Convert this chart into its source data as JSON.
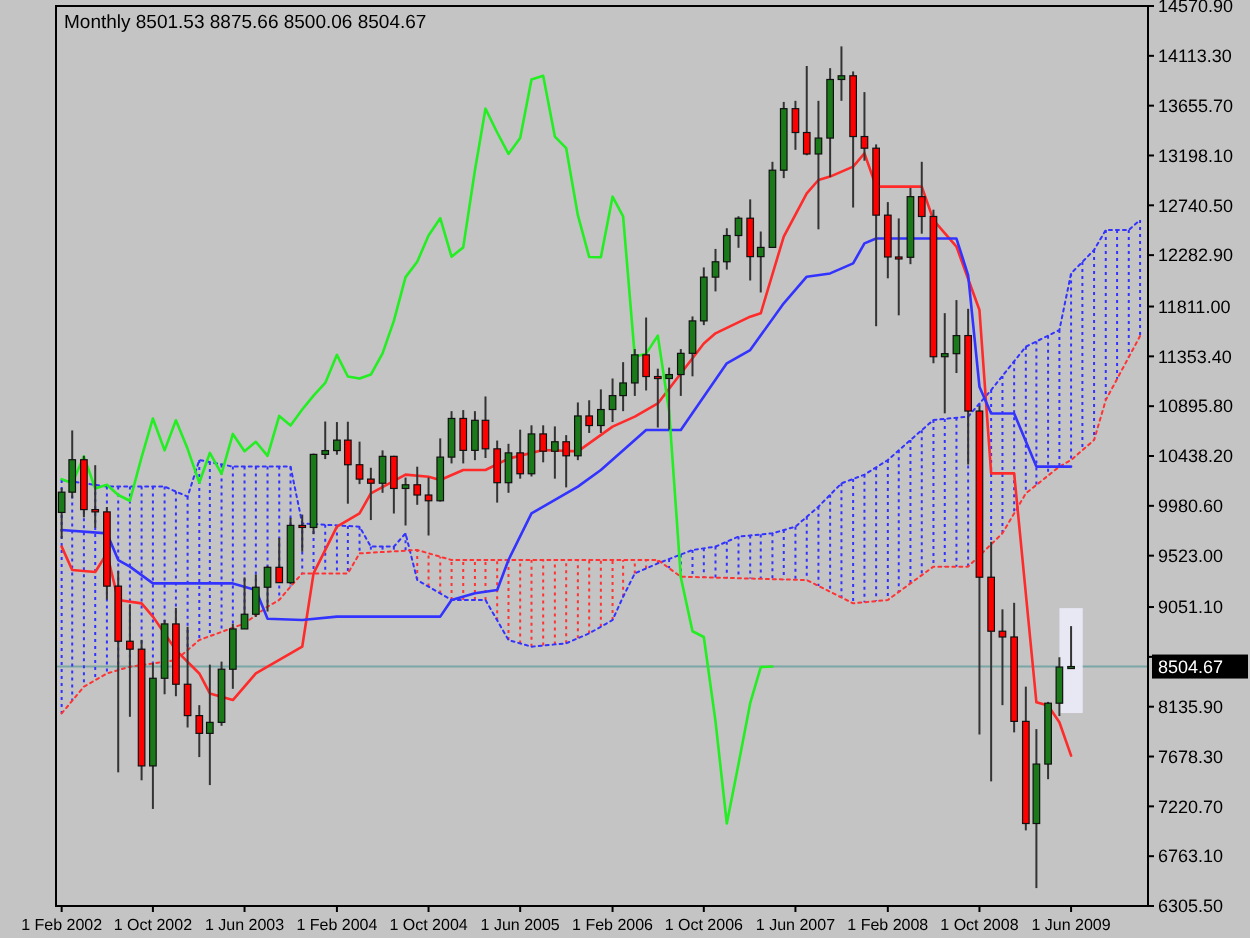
{
  "chart_data": {
    "type": "candlestick",
    "title": "Monthly 8501.53 8875.66 8500.06 8504.67",
    "x": [
      "2002-02",
      "2002-03",
      "2002-04",
      "2002-05",
      "2002-06",
      "2002-07",
      "2002-08",
      "2002-09",
      "2002-10",
      "2002-11",
      "2002-12",
      "2003-01",
      "2003-02",
      "2003-03",
      "2003-04",
      "2003-05",
      "2003-06",
      "2003-07",
      "2003-08",
      "2003-09",
      "2003-10",
      "2003-11",
      "2003-12",
      "2004-01",
      "2004-02",
      "2004-03",
      "2004-04",
      "2004-05",
      "2004-06",
      "2004-07",
      "2004-08",
      "2004-09",
      "2004-10",
      "2004-11",
      "2004-12",
      "2005-01",
      "2005-02",
      "2005-03",
      "2005-04",
      "2005-05",
      "2005-06",
      "2005-07",
      "2005-08",
      "2005-09",
      "2005-10",
      "2005-11",
      "2005-12",
      "2006-01",
      "2006-02",
      "2006-03",
      "2006-04",
      "2006-05",
      "2006-06",
      "2006-07",
      "2006-08",
      "2006-09",
      "2006-10",
      "2006-11",
      "2006-12",
      "2007-01",
      "2007-02",
      "2007-03",
      "2007-04",
      "2007-05",
      "2007-06",
      "2007-07",
      "2007-08",
      "2007-09",
      "2007-10",
      "2007-11",
      "2007-12",
      "2008-01",
      "2008-02",
      "2008-03",
      "2008-04",
      "2008-05",
      "2008-06",
      "2008-07",
      "2008-08",
      "2008-09",
      "2008-10",
      "2008-11",
      "2008-12",
      "2009-01",
      "2009-02",
      "2009-03",
      "2009-04",
      "2009-05",
      "2009-06"
    ],
    "ohlc": [
      [
        9920,
        10145,
        9680,
        10106
      ],
      [
        10106,
        10673,
        10050,
        10404
      ],
      [
        10404,
        10440,
        9875,
        9946
      ],
      [
        9946,
        10354,
        9780,
        9925
      ],
      [
        9925,
        9970,
        9120,
        9243
      ],
      [
        9243,
        9380,
        7533,
        8737
      ],
      [
        8737,
        9077,
        8043,
        8664
      ],
      [
        8664,
        8750,
        7460,
        7592
      ],
      [
        7592,
        8538,
        7197,
        8397
      ],
      [
        8397,
        8932,
        8250,
        8896
      ],
      [
        8896,
        9043,
        8232,
        8342
      ],
      [
        8342,
        8870,
        7945,
        8054
      ],
      [
        8054,
        8150,
        7673,
        7891
      ],
      [
        7891,
        8522,
        7416,
        7992
      ],
      [
        7992,
        8550,
        7960,
        8480
      ],
      [
        8480,
        8897,
        8300,
        8850
      ],
      [
        8850,
        9323,
        8850,
        8985
      ],
      [
        8985,
        9350,
        8960,
        9233
      ],
      [
        9233,
        9430,
        9010,
        9416
      ],
      [
        9416,
        9686,
        9275,
        9275
      ],
      [
        9275,
        9870,
        9260,
        9801
      ],
      [
        9801,
        9900,
        9560,
        9782
      ],
      [
        9782,
        10460,
        9720,
        10453
      ],
      [
        10453,
        10755,
        10410,
        10488
      ],
      [
        10488,
        10750,
        10450,
        10584
      ],
      [
        10584,
        10753,
        10000,
        10358
      ],
      [
        10358,
        10570,
        10180,
        10226
      ],
      [
        10226,
        10330,
        9850,
        10188
      ],
      [
        10188,
        10490,
        10100,
        10435
      ],
      [
        10435,
        10440,
        9910,
        10140
      ],
      [
        10140,
        10240,
        9800,
        10174
      ],
      [
        10174,
        10340,
        9990,
        10080
      ],
      [
        10080,
        10240,
        9708,
        10027
      ],
      [
        10027,
        10600,
        10020,
        10428
      ],
      [
        10428,
        10850,
        10370,
        10783
      ],
      [
        10783,
        10860,
        10370,
        10490
      ],
      [
        10490,
        10850,
        10400,
        10766
      ],
      [
        10766,
        10985,
        10420,
        10504
      ],
      [
        10504,
        10580,
        10010,
        10193
      ],
      [
        10193,
        10550,
        10100,
        10467
      ],
      [
        10467,
        10680,
        10230,
        10275
      ],
      [
        10275,
        10720,
        10250,
        10641
      ],
      [
        10641,
        10720,
        10380,
        10482
      ],
      [
        10482,
        10710,
        10230,
        10569
      ],
      [
        10569,
        10630,
        10150,
        10440
      ],
      [
        10440,
        10930,
        10400,
        10806
      ],
      [
        10806,
        10950,
        10650,
        10718
      ],
      [
        10718,
        11050,
        10650,
        10865
      ],
      [
        10865,
        11150,
        10750,
        10993
      ],
      [
        10993,
        11300,
        10850,
        11109
      ],
      [
        11109,
        11420,
        10990,
        11367
      ],
      [
        11367,
        11710,
        11040,
        11168
      ],
      [
        11168,
        11240,
        10700,
        11150
      ],
      [
        11150,
        11250,
        10680,
        11186
      ],
      [
        11186,
        11420,
        10990,
        11381
      ],
      [
        11381,
        11720,
        11170,
        11679
      ],
      [
        11679,
        12170,
        11640,
        12081
      ],
      [
        12081,
        12340,
        11950,
        12222
      ],
      [
        12222,
        12530,
        12150,
        12463
      ],
      [
        12463,
        12640,
        12350,
        12622
      ],
      [
        12622,
        12795,
        12050,
        12269
      ],
      [
        12269,
        12500,
        11940,
        12354
      ],
      [
        12354,
        13140,
        12350,
        13063
      ],
      [
        13063,
        13690,
        12990,
        13628
      ],
      [
        13628,
        13700,
        13250,
        13409
      ],
      [
        13409,
        14020,
        13200,
        13212
      ],
      [
        13212,
        13700,
        12520,
        13358
      ],
      [
        13358,
        14000,
        13000,
        13896
      ],
      [
        13896,
        14200,
        13700,
        13930
      ],
      [
        13930,
        13970,
        12720,
        13372
      ],
      [
        13372,
        13780,
        13150,
        13265
      ],
      [
        13265,
        13300,
        11630,
        12650
      ],
      [
        12650,
        12770,
        12070,
        12266
      ],
      [
        12266,
        12620,
        11730,
        12263
      ],
      [
        12263,
        12900,
        12200,
        12820
      ],
      [
        12820,
        13140,
        12480,
        12638
      ],
      [
        12638,
        12700,
        11290,
        11350
      ],
      [
        11350,
        11750,
        10830,
        11378
      ],
      [
        11378,
        11870,
        11200,
        11544
      ],
      [
        11544,
        11790,
        10360,
        10851
      ],
      [
        10851,
        10900,
        7880,
        9325
      ],
      [
        9325,
        9650,
        7450,
        8829
      ],
      [
        8829,
        9030,
        8150,
        8776
      ],
      [
        8776,
        9090,
        7900,
        8001
      ],
      [
        8001,
        8320,
        7000,
        7063
      ],
      [
        7063,
        7930,
        6470,
        7609
      ],
      [
        7609,
        8180,
        7470,
        8168
      ],
      [
        8168,
        8590,
        8050,
        8500
      ],
      [
        8501.53,
        8875.66,
        8500.06,
        8504.67
      ]
    ],
    "colors": [
      "#1a7a1a",
      "#1a7a1a",
      "#ff0000",
      "#ff0000",
      "#ff0000",
      "#ff0000",
      "#ff0000",
      "#ff0000",
      "#1a7a1a",
      "#1a7a1a",
      "#ff0000",
      "#ff0000",
      "#ff0000",
      "#1a7a1a",
      "#1a7a1a",
      "#1a7a1a",
      "#1a7a1a",
      "#1a7a1a",
      "#1a7a1a",
      "#ff0000",
      "#1a7a1a",
      "#ff0000",
      "#1a7a1a",
      "#1a7a1a",
      "#1a7a1a",
      "#ff0000",
      "#ff0000",
      "#ff0000",
      "#1a7a1a",
      "#ff0000",
      "#1a7a1a",
      "#ff0000",
      "#ff0000",
      "#1a7a1a",
      "#1a7a1a",
      "#ff0000",
      "#1a7a1a",
      "#ff0000",
      "#ff0000",
      "#1a7a1a",
      "#ff0000",
      "#1a7a1a",
      "#ff0000",
      "#1a7a1a",
      "#ff0000",
      "#1a7a1a",
      "#ff0000",
      "#1a7a1a",
      "#1a7a1a",
      "#1a7a1a",
      "#1a7a1a",
      "#ff0000",
      "#ff0000",
      "#1a7a1a",
      "#1a7a1a",
      "#1a7a1a",
      "#1a7a1a",
      "#1a7a1a",
      "#1a7a1a",
      "#1a7a1a",
      "#ff0000",
      "#1a7a1a",
      "#1a7a1a",
      "#1a7a1a",
      "#ff0000",
      "#ff0000",
      "#1a7a1a",
      "#1a7a1a",
      "#1a7a1a",
      "#ff0000",
      "#ff0000",
      "#ff0000",
      "#ff0000",
      "#ff0000",
      "#1a7a1a",
      "#ff0000",
      "#ff0000",
      "#1a7a1a",
      "#1a7a1a",
      "#ff0000",
      "#ff0000",
      "#ff0000",
      "#ff0000",
      "#ff0000",
      "#ff0000",
      "#1a7a1a",
      "#1a7a1a",
      "#1a7a1a",
      "#1a7a1a"
    ],
    "series": [
      {
        "type": "line",
        "color": "#3333ff",
        "line_style": "dotted",
        "x": [
          "2002-02",
          "2002-06",
          "2002-11",
          "2003-01",
          "2003-02",
          "2003-05",
          "2003-10",
          "2003-11",
          "2004-04",
          "2004-05",
          "2004-07",
          "2004-08",
          "2004-09",
          "2004-12",
          "2005-03",
          "2005-05",
          "2005-07",
          "2005-10",
          "2005-12",
          "2006-02",
          "2006-03",
          "2006-04",
          "2006-06",
          "2006-09",
          "2006-11",
          "2007-01",
          "2007-04",
          "2007-06",
          "2007-08",
          "2007-10",
          "2007-12",
          "2008-02",
          "2008-04",
          "2008-06",
          "2008-09",
          "2008-11",
          "2009-02",
          "2009-05",
          "2009-06",
          "2009-08",
          "2009-09",
          "2009-11",
          "2009-12"
        ],
        "values": [
          10218,
          10157,
          10157,
          10065,
          10401,
          10341,
          10341,
          9819,
          9789,
          9606,
          9606,
          9728,
          9299,
          9116,
          9116,
          8748,
          8687,
          8718,
          8809,
          8932,
          9146,
          9360,
          9452,
          9575,
          9606,
          9698,
          9728,
          9789,
          9973,
          10187,
          10267,
          10401,
          10585,
          10769,
          10800,
          11044,
          11442,
          11595,
          12115,
          12330,
          12514,
          12514,
          12605
        ]
      },
      {
        "type": "line",
        "color": "#ff3333",
        "line_style": "dotted",
        "x": [
          "2002-02",
          "2002-04",
          "2002-06",
          "2002-08",
          "2002-12",
          "2003-02",
          "2003-06",
          "2003-08",
          "2003-09",
          "2003-10",
          "2003-11",
          "2004-03",
          "2004-04",
          "2004-09",
          "2004-12",
          "2006-06",
          "2006-08",
          "2007-07",
          "2007-11",
          "2008-02",
          "2008-06",
          "2008-09",
          "2008-12",
          "2009-02",
          "2009-05",
          "2009-06",
          "2009-08",
          "2009-09",
          "2009-12"
        ],
        "values": [
          8074,
          8320,
          8441,
          8503,
          8564,
          8748,
          8900,
          9055,
          9116,
          9239,
          9360,
          9360,
          9544,
          9575,
          9483,
          9483,
          9330,
          9299,
          9085,
          9116,
          9422,
          9422,
          9728,
          10095,
          10341,
          10401,
          10585,
          10952,
          11540
        ]
      },
      {
        "type": "line",
        "color": "#ff2a2a",
        "line_style": "solid",
        "x": [
          "2002-02",
          "2002-03",
          "2002-05",
          "2002-06",
          "2002-07",
          "2002-09",
          "2002-10",
          "2002-12",
          "2003-02",
          "2003-03",
          "2003-05",
          "2003-07",
          "2003-10",
          "2003-11",
          "2003-12",
          "2004-02",
          "2004-04",
          "2004-05",
          "2004-08",
          "2004-10",
          "2004-11",
          "2005-01",
          "2005-03",
          "2005-05",
          "2005-08",
          "2005-11",
          "2006-02",
          "2006-04",
          "2006-06",
          "2006-10",
          "2006-11",
          "2007-02",
          "2007-03",
          "2007-05",
          "2007-07",
          "2007-08",
          "2007-09",
          "2007-11",
          "2007-12",
          "2008-01",
          "2008-05",
          "2008-06",
          "2008-08",
          "2008-10",
          "2008-11",
          "2009-01",
          "2009-03",
          "2009-04",
          "2009-05",
          "2009-06"
        ],
        "values": [
          9606,
          9391,
          9373,
          9544,
          9116,
          9085,
          8963,
          8656,
          8441,
          8258,
          8197,
          8441,
          8625,
          8687,
          9360,
          9789,
          9911,
          10095,
          10267,
          10248,
          10218,
          10310,
          10310,
          10414,
          10493,
          10481,
          10708,
          10800,
          10921,
          11472,
          11565,
          11718,
          11749,
          12453,
          12850,
          12973,
          13004,
          13096,
          13218,
          12912,
          12912,
          12605,
          12361,
          11779,
          10279,
          10279,
          8176,
          8146,
          7993,
          7687
        ]
      },
      {
        "type": "line",
        "color": "#3333ff",
        "line_style": "solid",
        "x": [
          "2002-02",
          "2002-06",
          "2002-07",
          "2002-08",
          "2002-10",
          "2003-05",
          "2003-07",
          "2003-08",
          "2003-11",
          "2004-02",
          "2004-11",
          "2004-12",
          "2005-02",
          "2005-04",
          "2005-05",
          "2005-07",
          "2005-10",
          "2005-11",
          "2006-01",
          "2006-05",
          "2006-08",
          "2006-12",
          "2007-02",
          "2007-05",
          "2007-07",
          "2007-09",
          "2007-11",
          "2007-12",
          "2008-01",
          "2008-08",
          "2008-09",
          "2008-10",
          "2008-11",
          "2009-01",
          "2009-03",
          "2009-06"
        ],
        "values": [
          9758,
          9728,
          9483,
          9422,
          9268,
          9268,
          9207,
          8944,
          8932,
          8963,
          8963,
          9116,
          9177,
          9207,
          9483,
          9911,
          10095,
          10157,
          10310,
          10677,
          10677,
          11289,
          11411,
          11840,
          12085,
          12115,
          12207,
          12391,
          12435,
          12435,
          12100,
          11075,
          10829,
          10829,
          10341,
          10341
        ]
      },
      {
        "type": "line",
        "color": "#22ee22",
        "line_style": "solid",
        "x": [
          "2002-02",
          "2002-03",
          "2002-04",
          "2002-05",
          "2002-06",
          "2002-07",
          "2002-08",
          "2002-09",
          "2002-10",
          "2002-11",
          "2002-12",
          "2003-01",
          "2003-02",
          "2003-03",
          "2003-04",
          "2003-05",
          "2003-06",
          "2003-07",
          "2003-08",
          "2003-09",
          "2003-10",
          "2003-11",
          "2003-12",
          "2004-01",
          "2004-02",
          "2004-03",
          "2004-04",
          "2004-05",
          "2004-06",
          "2004-07",
          "2004-08",
          "2004-09",
          "2004-10",
          "2004-11",
          "2004-12",
          "2005-01",
          "2005-02",
          "2005-03",
          "2005-04",
          "2005-05",
          "2005-06",
          "2005-07",
          "2005-08",
          "2005-09",
          "2005-10",
          "2005-11",
          "2005-12",
          "2006-01",
          "2006-02",
          "2006-03",
          "2006-04",
          "2006-05",
          "2006-06",
          "2006-07",
          "2006-08",
          "2006-09",
          "2006-10",
          "2006-11",
          "2006-12",
          "2007-01",
          "2007-02",
          "2007-03",
          "2007-04"
        ],
        "values": [
          10226,
          10188,
          10435,
          10140,
          10174,
          10080,
          10027,
          10428,
          10783,
          10490,
          10766,
          10504,
          10193,
          10467,
          10275,
          10641,
          10482,
          10569,
          10440,
          10806,
          10718,
          10865,
          10993,
          11109,
          11367,
          11168,
          11150,
          11186,
          11381,
          11679,
          12081,
          12222,
          12463,
          12622,
          12269,
          12354,
          13063,
          13628,
          13409,
          13212,
          13358,
          13896,
          13930,
          13372,
          13265,
          12650,
          12266,
          12263,
          12820,
          12638,
          11350,
          11378,
          11544,
          10851,
          9325,
          8829,
          8776,
          8001,
          7063,
          7609,
          8168,
          8500,
          8504.67
        ]
      }
    ],
    "ref_lines": [
      {
        "axis": "y",
        "value": 8504.67,
        "label": "8504.67",
        "color": "#7aa6a6"
      }
    ],
    "xlim": [
      "2002-01-17",
      "2009-12-22"
    ],
    "xticks": [
      {
        "value": "2002-02-01",
        "label": "1 Feb 2002"
      },
      {
        "value": "2002-10-01",
        "label": "1 Oct 2002"
      },
      {
        "value": "2003-06-01",
        "label": "1 Jun 2003"
      },
      {
        "value": "2004-02-01",
        "label": "1 Feb 2004"
      },
      {
        "value": "2004-10-01",
        "label": "1 Oct 2004"
      },
      {
        "value": "2005-06-01",
        "label": "1 Jun 2005"
      },
      {
        "value": "2006-02-01",
        "label": "1 Feb 2006"
      },
      {
        "value": "2006-10-01",
        "label": "1 Oct 2006"
      },
      {
        "value": "2007-06-01",
        "label": "1 Jun 2007"
      },
      {
        "value": "2008-02-01",
        "label": "1 Feb 2008"
      },
      {
        "value": "2008-10-01",
        "label": "1 Oct 2008"
      },
      {
        "value": "2009-06-01",
        "label": "1 Jun 2009"
      }
    ],
    "ylim": [
      6305.5,
      14570.9
    ],
    "yticks": [
      {
        "value": 14570.9,
        "label": "14570.90"
      },
      {
        "value": 14113.3,
        "label": "14113.30"
      },
      {
        "value": 13655.7,
        "label": "13655.70"
      },
      {
        "value": 13198.1,
        "label": "13198.10"
      },
      {
        "value": 12740.5,
        "label": "12740.50"
      },
      {
        "value": 12282.9,
        "label": "12282.90"
      },
      {
        "value": 11811,
        "label": "11811.00"
      },
      {
        "value": 11353.4,
        "label": "11353.40"
      },
      {
        "value": 10895.8,
        "label": "10895.80"
      },
      {
        "value": 10438.2,
        "label": "10438.20"
      },
      {
        "value": 9980.6,
        "label": "9980.60"
      },
      {
        "value": 9523,
        "label": "9523.00"
      },
      {
        "value": 9051.1,
        "label": "9051.10"
      },
      {
        "value": 8593.5,
        "label": null
      },
      {
        "value": 8135.9,
        "label": "8135.90"
      },
      {
        "value": 7678.3,
        "label": "7678.30"
      },
      {
        "value": 7220.7,
        "label": "7220.70"
      },
      {
        "value": 6763.1,
        "label": "6763.10"
      },
      {
        "value": 6305.5,
        "label": "6305.50"
      }
    ]
  }
}
